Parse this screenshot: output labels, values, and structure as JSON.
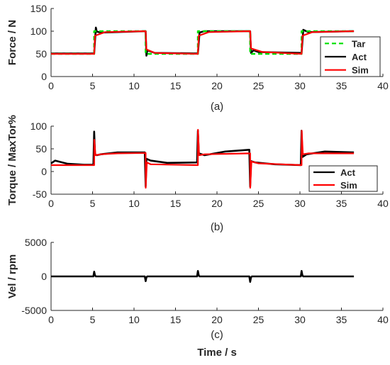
{
  "chart_data": [
    {
      "type": "line",
      "panel_label": "(a)",
      "ylabel": "Force / N",
      "xlabel": "",
      "xlim": [
        0,
        40
      ],
      "ylim": [
        0,
        150
      ],
      "xticks": [
        "0",
        "5",
        "10",
        "15",
        "20",
        "25",
        "30",
        "35",
        "40"
      ],
      "yticks": [
        "0",
        "50",
        "100",
        "150"
      ],
      "legend_placement": "right",
      "series": [
        {
          "name": "Tar",
          "color": "#00e000",
          "style": "dashed",
          "x": [
            0,
            5.2,
            5.2,
            11.4,
            11.4,
            17.7,
            17.7,
            24.0,
            24.0,
            30.2,
            30.2,
            36.5
          ],
          "y": [
            50,
            50,
            100,
            100,
            50,
            50,
            100,
            100,
            50,
            50,
            100,
            100
          ]
        },
        {
          "name": "Act",
          "color": "#000000",
          "style": "solid",
          "x": [
            0,
            5.2,
            5.4,
            5.5,
            6.0,
            11.4,
            11.5,
            11.6,
            12.5,
            17.7,
            17.9,
            18.5,
            24.0,
            24.1,
            24.4,
            25.0,
            30.2,
            30.4,
            31.0,
            36.5
          ],
          "y": [
            51,
            51,
            108,
            99,
            97,
            100,
            46,
            58,
            52,
            51,
            97,
            100,
            100,
            52,
            58,
            54,
            52,
            103,
            98,
            100
          ]
        },
        {
          "name": "Sim",
          "color": "#ff0000",
          "style": "solid",
          "x": [
            0,
            5.2,
            5.3,
            6.5,
            11.4,
            11.5,
            12.5,
            17.7,
            17.8,
            19.0,
            24.0,
            24.1,
            25.5,
            30.2,
            30.3,
            31.5,
            36.5
          ],
          "y": [
            50,
            50,
            90,
            98,
            100,
            60,
            52,
            50,
            90,
            98,
            100,
            62,
            54,
            50,
            90,
            98,
            100
          ]
        }
      ]
    },
    {
      "type": "line",
      "panel_label": "(b)",
      "ylabel": "Torque / MaxTor%",
      "xlabel": "",
      "xlim": [
        0,
        40
      ],
      "ylim": [
        -50,
        100
      ],
      "xticks": [
        "0",
        "5",
        "10",
        "15",
        "20",
        "25",
        "30",
        "35",
        "40"
      ],
      "yticks": [
        "-50",
        "0",
        "50",
        "100"
      ],
      "legend_placement": "bottom-right",
      "series": [
        {
          "name": "Act",
          "color": "#000000",
          "style": "solid",
          "x": [
            0,
            0.5,
            2,
            4,
            5.1,
            5.2,
            5.3,
            5.5,
            6,
            8,
            11.3,
            11.4,
            11.5,
            12,
            14,
            17.6,
            17.7,
            17.8,
            18.5,
            21,
            23.9,
            24.0,
            24.1,
            24.6,
            27,
            30.1,
            30.2,
            30.3,
            30.8,
            33,
            36.5
          ],
          "y": [
            18,
            24,
            17,
            15,
            15,
            88,
            38,
            36,
            38,
            42,
            42,
            -33,
            28,
            24,
            19,
            20,
            90,
            40,
            36,
            44,
            48,
            -33,
            23,
            20,
            16,
            14,
            90,
            32,
            38,
            44,
            42
          ]
        },
        {
          "name": "Sim",
          "color": "#ff0000",
          "style": "solid",
          "x": [
            0,
            5.2,
            5.21,
            5.35,
            6,
            8,
            11.4,
            11.41,
            11.55,
            12,
            17.7,
            17.71,
            17.85,
            18.5,
            24.0,
            24.01,
            24.15,
            25,
            30.2,
            30.21,
            30.35,
            31,
            36.5
          ],
          "y": [
            14,
            14,
            70,
            36,
            38,
            40,
            41,
            -36,
            20,
            16,
            14,
            92,
            36,
            38,
            40,
            -36,
            22,
            18,
            14,
            90,
            38,
            40,
            40
          ]
        }
      ]
    },
    {
      "type": "line",
      "panel_label": "(c)",
      "ylabel": "Vel / rpm",
      "xlabel": "Time / s",
      "xlim": [
        0,
        40
      ],
      "ylim": [
        -5000,
        5000
      ],
      "xticks": [
        "0",
        "5",
        "10",
        "15",
        "20",
        "25",
        "30",
        "35",
        "40"
      ],
      "yticks": [
        "-5000",
        "0",
        "5000"
      ],
      "series": [
        {
          "name": "",
          "color": "#000000",
          "style": "solid",
          "x": [
            0,
            5.1,
            5.2,
            5.3,
            5.4,
            11.3,
            11.4,
            11.5,
            11.6,
            17.6,
            17.7,
            17.8,
            17.9,
            23.9,
            24.0,
            24.1,
            24.2,
            30.1,
            30.2,
            30.3,
            30.4,
            36.5
          ],
          "y": [
            0,
            0,
            700,
            150,
            0,
            0,
            -700,
            -150,
            0,
            0,
            800,
            150,
            0,
            0,
            -800,
            -150,
            0,
            0,
            800,
            150,
            0,
            0
          ]
        }
      ]
    }
  ]
}
